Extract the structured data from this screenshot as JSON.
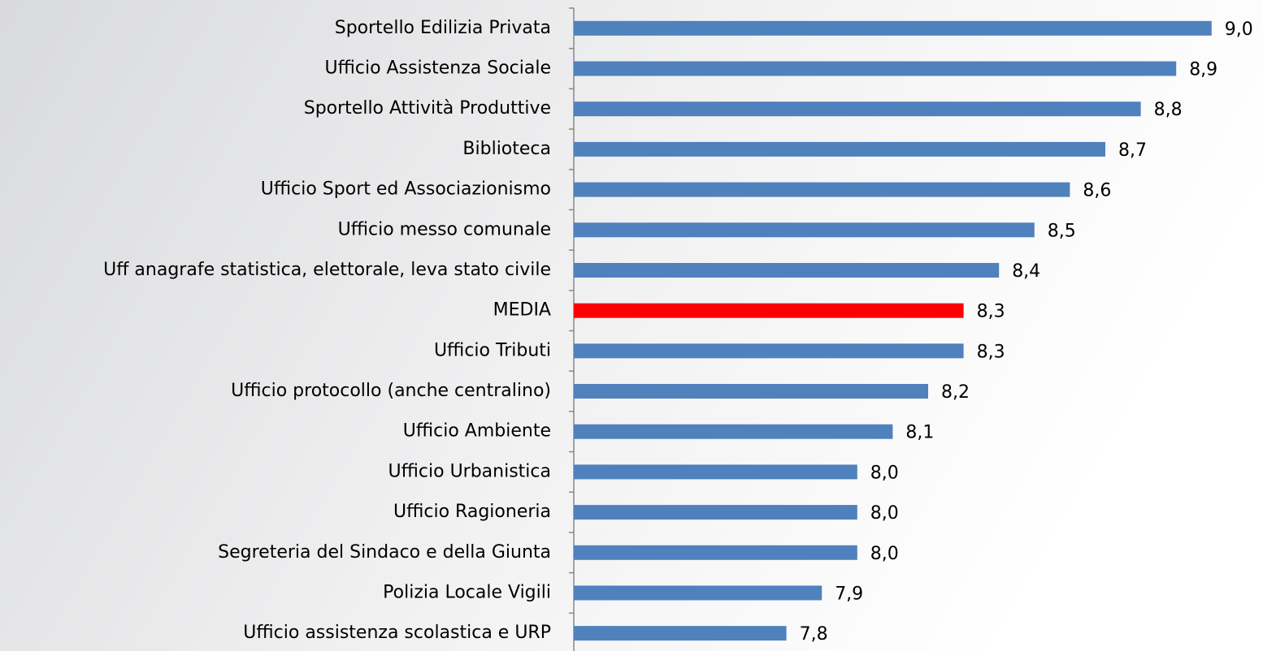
{
  "chart_data": {
    "type": "barh",
    "categories": [
      "Sportello Edilizia Privata",
      "Ufficio Assistenza Sociale",
      "Sportello Attività Produttive",
      "Biblioteca",
      "Ufficio Sport ed Associazionismo",
      "Ufficio messo comunale",
      "Uff anagrafe statistica, elettorale, leva stato civile",
      "MEDIA",
      "Ufficio Tributi",
      "Ufficio protocollo (anche centralino)",
      "Ufficio Ambiente",
      "Ufficio Urbanistica",
      "Ufficio Ragioneria",
      "Segreteria del Sindaco e della Giunta",
      "Polizia Locale Vigili",
      "Ufficio assistenza scolastica e URP"
    ],
    "values": [
      9.0,
      8.9,
      8.8,
      8.7,
      8.6,
      8.5,
      8.4,
      8.3,
      8.3,
      8.2,
      8.1,
      8.0,
      8.0,
      8.0,
      7.9,
      7.8
    ],
    "value_labels": [
      "9,0",
      "8,9",
      "8,8",
      "8,7",
      "8,6",
      "8,5",
      "8,4",
      "8,3",
      "8,3",
      "8,2",
      "8,1",
      "8,0",
      "8,0",
      "8,0",
      "7,9",
      "7,8"
    ],
    "colors": [
      "#4f81bd",
      "#4f81bd",
      "#4f81bd",
      "#4f81bd",
      "#4f81bd",
      "#4f81bd",
      "#4f81bd",
      "#ff0000",
      "#4f81bd",
      "#4f81bd",
      "#4f81bd",
      "#4f81bd",
      "#4f81bd",
      "#4f81bd",
      "#4f81bd",
      "#4f81bd"
    ],
    "xlim": [
      7.2,
      9.2
    ]
  }
}
